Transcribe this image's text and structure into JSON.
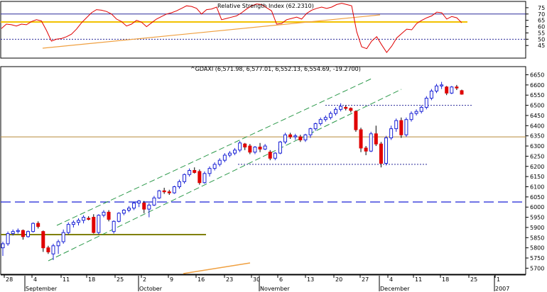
{
  "chart_data": [
    {
      "type": "line",
      "title": "Relative Strength Index (62.2310)",
      "ylim": [
        35,
        80
      ],
      "y_ticks": [
        45,
        50,
        55,
        60,
        65,
        70,
        75
      ],
      "x_ticks": [
        "28",
        "4",
        "11",
        "18",
        "25",
        "2",
        "9",
        "16",
        "23",
        "30",
        "6",
        "13",
        "20",
        "27",
        "4",
        "11",
        "18",
        "25",
        "1"
      ],
      "x_month_labels": [
        "September",
        "October",
        "November",
        "December",
        "2007"
      ],
      "reference_levels": [
        70,
        50
      ],
      "series": [
        {
          "values": [
            58.5,
            62,
            61.5,
            60.5,
            62,
            61.5,
            64,
            65.5,
            64.5,
            57,
            48.5,
            50,
            50.5,
            52,
            54,
            58,
            63,
            67,
            71,
            73.5,
            73,
            72,
            70,
            66,
            64,
            60.5,
            62,
            65,
            63.5,
            60,
            63,
            66,
            68,
            70,
            71,
            72.5,
            74.5,
            76.5,
            76,
            74.5,
            70,
            73.5,
            74,
            75.5,
            65.5,
            66.5,
            67.5,
            68.5,
            71,
            74,
            76.5,
            78,
            77.5,
            75,
            72.5,
            62,
            62.5,
            65.5,
            66.5,
            67.5,
            66,
            70.5,
            73,
            74.5,
            75.5,
            74.5,
            75.5,
            77.5,
            78.5,
            77.5,
            76.5,
            56,
            44,
            42.5,
            48.5,
            52,
            45.5,
            39.5,
            44.5,
            51,
            54.5,
            58,
            57.5,
            62.5,
            65,
            67,
            68.5,
            71.5,
            71,
            66,
            68,
            67,
            63
          ]
        }
      ]
    },
    {
      "type": "candlestick",
      "title": "^GDAXI (6,571.98, 6,577.01, 6,552.13, 6,554.69, -19.2700)",
      "ylim": [
        5670,
        6690
      ],
      "y_ticks": [
        5700,
        5750,
        5800,
        5850,
        5900,
        5950,
        6000,
        6050,
        6100,
        6150,
        6200,
        6250,
        6300,
        6350,
        6400,
        6450,
        6500,
        6550,
        6600,
        6650
      ],
      "x_ticks": [
        "28",
        "4",
        "11",
        "18",
        "25",
        "2",
        "9",
        "16",
        "23",
        "30",
        "6",
        "13",
        "20",
        "27",
        "4",
        "11",
        "18",
        "25",
        "1"
      ],
      "x_month_labels": [
        "September",
        "October",
        "November",
        "December",
        "2007"
      ],
      "ohlc": [
        [
          5800,
          5830,
          5760,
          5820
        ],
        [
          5820,
          5880,
          5810,
          5870
        ],
        [
          5870,
          5890,
          5860,
          5880
        ],
        [
          5880,
          5895,
          5870,
          5885
        ],
        [
          5885,
          5890,
          5840,
          5855
        ],
        [
          5855,
          5885,
          5850,
          5880
        ],
        [
          5880,
          5925,
          5875,
          5920
        ],
        [
          5920,
          5930,
          5895,
          5905
        ],
        [
          5880,
          5885,
          5780,
          5800
        ],
        [
          5800,
          5810,
          5770,
          5780
        ],
        [
          5770,
          5820,
          5740,
          5810
        ],
        [
          5810,
          5840,
          5770,
          5830
        ],
        [
          5830,
          5890,
          5820,
          5875
        ],
        [
          5875,
          5925,
          5865,
          5915
        ],
        [
          5915,
          5935,
          5900,
          5925
        ],
        [
          5925,
          5945,
          5910,
          5935
        ],
        [
          5935,
          5960,
          5920,
          5950
        ],
        [
          5945,
          5955,
          5935,
          5940
        ],
        [
          5950,
          5965,
          5870,
          5875
        ],
        [
          5875,
          5965,
          5865,
          5960
        ],
        [
          5960,
          5985,
          5950,
          5975
        ],
        [
          5975,
          5985,
          5930,
          5940
        ],
        [
          5880,
          5935,
          5870,
          5930
        ],
        [
          5930,
          5975,
          5925,
          5970
        ],
        [
          5970,
          5990,
          5960,
          5985
        ],
        [
          5985,
          6005,
          5975,
          5995
        ],
        [
          5995,
          6025,
          5985,
          6020
        ],
        [
          6020,
          6035,
          6000,
          6030
        ],
        [
          6020,
          6030,
          5970,
          5990
        ],
        [
          5990,
          6020,
          5950,
          6010
        ],
        [
          6010,
          6055,
          6005,
          6045
        ],
        [
          6045,
          6085,
          6040,
          6080
        ],
        [
          6080,
          6095,
          6065,
          6075
        ],
        [
          6075,
          6085,
          6060,
          6070
        ],
        [
          6070,
          6105,
          6065,
          6100
        ],
        [
          6100,
          6135,
          6090,
          6125
        ],
        [
          6125,
          6165,
          6115,
          6160
        ],
        [
          6160,
          6190,
          6150,
          6180
        ],
        [
          6180,
          6195,
          6165,
          6170
        ],
        [
          6175,
          6185,
          6110,
          6120
        ],
        [
          6120,
          6175,
          6115,
          6165
        ],
        [
          6165,
          6200,
          6150,
          6190
        ],
        [
          6190,
          6220,
          6180,
          6210
        ],
        [
          6210,
          6240,
          6200,
          6230
        ],
        [
          6230,
          6265,
          6220,
          6255
        ],
        [
          6255,
          6275,
          6245,
          6265
        ],
        [
          6265,
          6290,
          6255,
          6280
        ],
        [
          6280,
          6325,
          6270,
          6315
        ],
        [
          6310,
          6315,
          6280,
          6295
        ],
        [
          6300,
          6310,
          6260,
          6270
        ],
        [
          6270,
          6300,
          6260,
          6295
        ],
        [
          6295,
          6315,
          6270,
          6285
        ],
        [
          6285,
          6310,
          6280,
          6300
        ],
        [
          6270,
          6280,
          6230,
          6240
        ],
        [
          6240,
          6270,
          6230,
          6265
        ],
        [
          6265,
          6325,
          6260,
          6320
        ],
        [
          6320,
          6365,
          6310,
          6355
        ],
        [
          6355,
          6365,
          6335,
          6345
        ],
        [
          6345,
          6360,
          6330,
          6350
        ],
        [
          6345,
          6355,
          6320,
          6330
        ],
        [
          6330,
          6360,
          6320,
          6355
        ],
        [
          6355,
          6390,
          6340,
          6385
        ],
        [
          6385,
          6415,
          6375,
          6410
        ],
        [
          6410,
          6440,
          6400,
          6430
        ],
        [
          6430,
          6450,
          6420,
          6440
        ],
        [
          6440,
          6470,
          6430,
          6460
        ],
        [
          6460,
          6490,
          6450,
          6480
        ],
        [
          6480,
          6510,
          6470,
          6495
        ],
        [
          6490,
          6500,
          6475,
          6485
        ],
        [
          6485,
          6490,
          6465,
          6475
        ],
        [
          6470,
          6475,
          6370,
          6380
        ],
        [
          6380,
          6390,
          6270,
          6290
        ],
        [
          6290,
          6300,
          6255,
          6275
        ],
        [
          6275,
          6370,
          6270,
          6360
        ],
        [
          6360,
          6400,
          6300,
          6310
        ],
        [
          6310,
          6320,
          6195,
          6215
        ],
        [
          6215,
          6350,
          6205,
          6340
        ],
        [
          6340,
          6400,
          6330,
          6385
        ],
        [
          6385,
          6435,
          6370,
          6425
        ],
        [
          6425,
          6440,
          6340,
          6355
        ],
        [
          6355,
          6440,
          6345,
          6430
        ],
        [
          6430,
          6470,
          6420,
          6460
        ],
        [
          6460,
          6480,
          6450,
          6470
        ],
        [
          6470,
          6500,
          6460,
          6490
        ],
        [
          6490,
          6545,
          6480,
          6535
        ],
        [
          6535,
          6580,
          6525,
          6570
        ],
        [
          6570,
          6605,
          6560,
          6595
        ],
        [
          6595,
          6615,
          6580,
          6600
        ],
        [
          6590,
          6595,
          6550,
          6560
        ],
        [
          6560,
          6595,
          6555,
          6590
        ],
        [
          6590,
          6600,
          6575,
          6585
        ],
        [
          6571.98,
          6577.01,
          6552.13,
          6554.69
        ]
      ],
      "reference_levels": [
        6500,
        6210,
        6025,
        5865
      ]
    }
  ],
  "colors": {
    "rsi_line": "#e00000",
    "rsi_upper_level": "#2a2a9a",
    "rsi_lower_level": "#2a2a9a",
    "rsi_yellow_level": "#f2c200",
    "trendline": "#f0a040",
    "up_candle": "#1a22d6",
    "down_candle": "#e00000",
    "channel": "#2e9a4c",
    "dotted_level": "#2a2a9a",
    "resistance": "#b88a3a",
    "support_dashed": "#1a22d6",
    "support_olive": "#808000",
    "grid": "#a0a0a0"
  }
}
